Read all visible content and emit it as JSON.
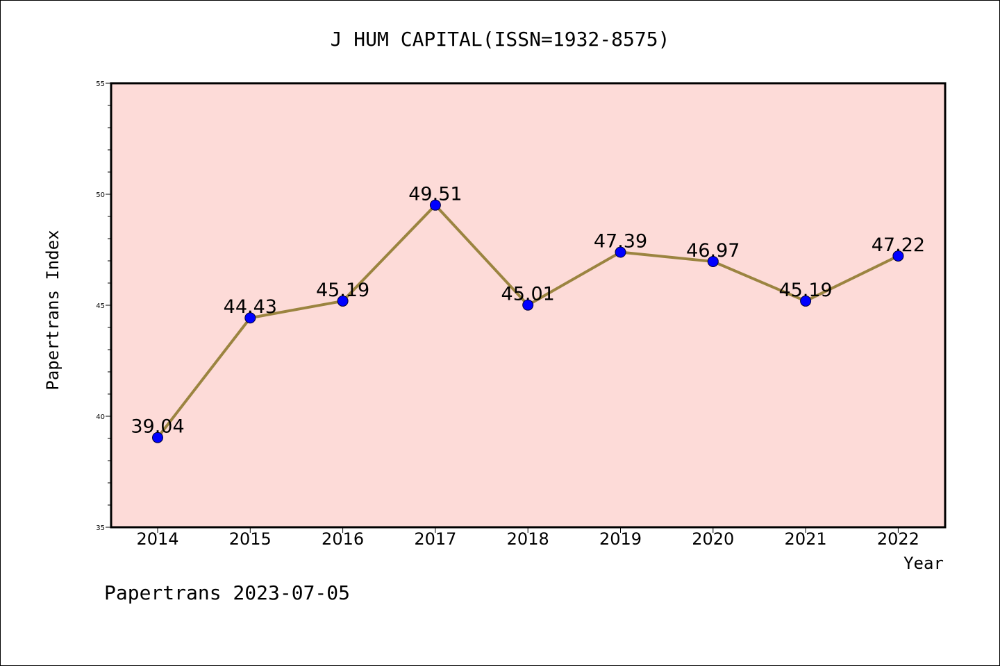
{
  "chart_data": {
    "type": "line",
    "title": "J HUM CAPITAL(ISSN=1932-8575)",
    "xlabel": "Year",
    "ylabel": "Papertrans Index",
    "x": [
      "2014",
      "2015",
      "2016",
      "2017",
      "2018",
      "2019",
      "2020",
      "2021",
      "2022"
    ],
    "series": [
      {
        "values": [
          39.04,
          44.43,
          45.19,
          49.51,
          45.01,
          47.39,
          46.97,
          45.19,
          47.22
        ]
      }
    ],
    "data_labels": [
      "39.04",
      "44.43",
      "45.19",
      "49.51",
      "45.01",
      "47.39",
      "46.97",
      "45.19",
      "47.22"
    ],
    "ylim": [
      35,
      55
    ],
    "yticks": [
      "35",
      "40",
      "45",
      "50",
      "55"
    ],
    "grid": false,
    "colors": {
      "plot_background": "#fddbd8",
      "line": "#9b8440",
      "marker": "#0000ff"
    }
  },
  "footer": "Papertrans 2023-07-05"
}
